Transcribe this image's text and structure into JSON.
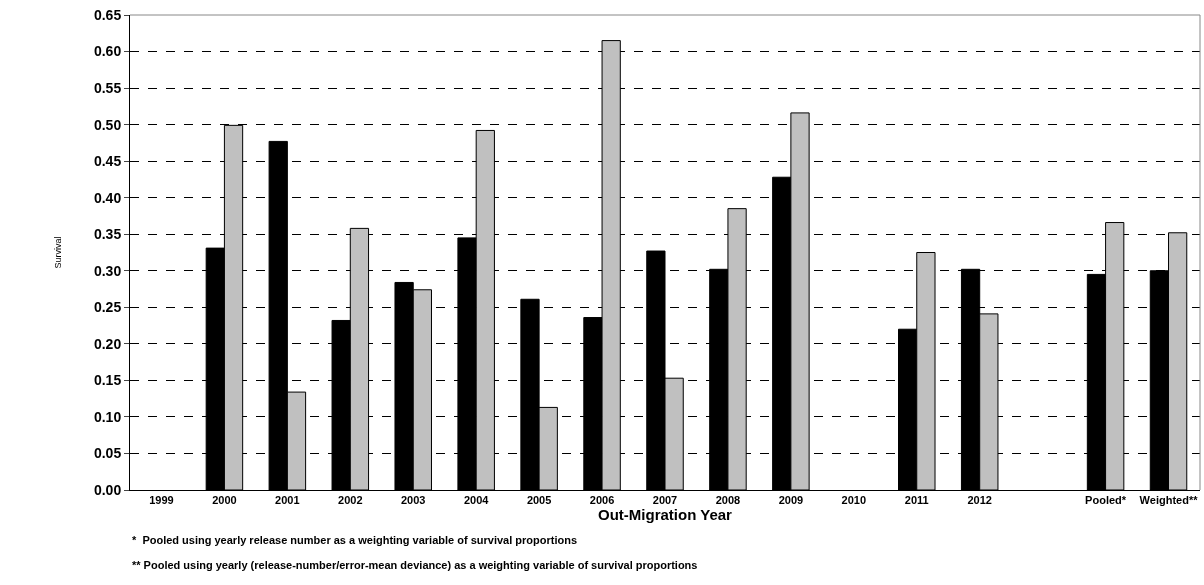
{
  "chart_data": {
    "type": "bar",
    "xlabel": "Out-Migration Year",
    "ylabel": "Survival",
    "categories": [
      "1999",
      "2000",
      "2001",
      "2002",
      "2003",
      "2004",
      "2005",
      "2006",
      "2007",
      "2008",
      "2009",
      "2010",
      "2011",
      "2012",
      null,
      "Pooled*",
      "Weighted**"
    ],
    "series": [
      {
        "color": "#000000",
        "values": [
          null,
          0.331,
          0.477,
          0.232,
          0.284,
          0.345,
          0.261,
          0.236,
          0.327,
          0.302,
          0.428,
          null,
          0.22,
          0.302,
          null,
          0.295,
          0.3
        ]
      },
      {
        "color": "#c0c0c0",
        "values": [
          null,
          0.499,
          0.134,
          0.358,
          0.274,
          0.492,
          0.113,
          0.615,
          0.153,
          0.385,
          0.516,
          null,
          0.325,
          0.241,
          null,
          0.366,
          0.352
        ]
      }
    ],
    "ylim": [
      0,
      0.65
    ],
    "yticks": [
      {
        "value": 0,
        "label": "0.00"
      },
      {
        "value": 0.05,
        "label": "0.05"
      },
      {
        "value": 0.1,
        "label": "0.10"
      },
      {
        "value": 0.15,
        "label": "0.15"
      },
      {
        "value": 0.2,
        "label": "0.20"
      },
      {
        "value": 0.25,
        "label": "0.25"
      },
      {
        "value": 0.3,
        "label": "0.30"
      },
      {
        "value": 0.35,
        "label": "0.35"
      },
      {
        "value": 0.4,
        "label": "0.40"
      },
      {
        "value": 0.45,
        "label": "0.45"
      },
      {
        "value": 0.5,
        "label": "0.50"
      },
      {
        "value": 0.55,
        "label": "0.55"
      },
      {
        "value": 0.6,
        "label": "0.60"
      },
      {
        "value": 0.65,
        "label": "0.65"
      }
    ],
    "grid": "y",
    "legend": false,
    "annotations": [
      "*  Pooled using yearly release number as a weighting variable of survival proportions",
      "** Pooled using yearly (release-number/error-mean deviance) as a weighting variable of survival proportions"
    ]
  }
}
